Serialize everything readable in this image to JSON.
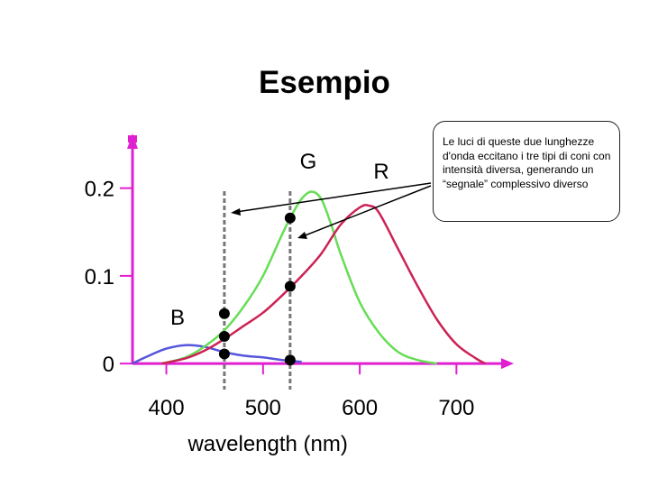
{
  "slide": {
    "title": "Esempio",
    "callout_text": "Le luci di queste due lunghezze d'onda eccitano i tre tipi di coni con intensità diversa, generando un “segnale” complessivo diverso"
  },
  "chart_data": {
    "type": "line",
    "xlabel": "wavelength (nm)",
    "ylabel": "",
    "x_ticks": [
      "400",
      "500",
      "600",
      "700"
    ],
    "y_ticks": [
      "0",
      "0.1",
      "0.2"
    ],
    "xlim": [
      365,
      750
    ],
    "ylim": [
      -0.005,
      0.25
    ],
    "grid": false,
    "series": [
      {
        "name": "B",
        "color": "#5555dd",
        "x": [
          365,
          380,
          400,
          420,
          440,
          460,
          480,
          500,
          520,
          540
        ],
        "y": [
          0.0,
          0.008,
          0.017,
          0.021,
          0.019,
          0.013,
          0.009,
          0.007,
          0.004,
          0.002
        ]
      },
      {
        "name": "G",
        "color": "#66dd55",
        "x": [
          395,
          420,
          440,
          460,
          480,
          500,
          520,
          530,
          540,
          550,
          560,
          570,
          580,
          600,
          620,
          640,
          660,
          680
        ],
        "y": [
          0.0,
          0.007,
          0.02,
          0.038,
          0.065,
          0.1,
          0.148,
          0.17,
          0.188,
          0.196,
          0.188,
          0.16,
          0.126,
          0.07,
          0.035,
          0.013,
          0.004,
          0.0
        ]
      },
      {
        "name": "R",
        "color": "#cc2255",
        "x": [
          395,
          420,
          440,
          460,
          480,
          500,
          520,
          540,
          560,
          580,
          600,
          610,
          620,
          640,
          660,
          680,
          700,
          720,
          730
        ],
        "y": [
          0.0,
          0.006,
          0.015,
          0.028,
          0.043,
          0.058,
          0.078,
          0.1,
          0.125,
          0.158,
          0.178,
          0.18,
          0.172,
          0.13,
          0.088,
          0.05,
          0.022,
          0.006,
          0.0
        ]
      }
    ],
    "reference_lines": [
      {
        "x": 460
      },
      {
        "x": 528
      }
    ],
    "markers": [
      {
        "x": 460,
        "y": 0.057
      },
      {
        "x": 460,
        "y": 0.031
      },
      {
        "x": 460,
        "y": 0.011
      },
      {
        "x": 528,
        "y": 0.166
      },
      {
        "x": 528,
        "y": 0.088
      },
      {
        "x": 528,
        "y": 0.004
      }
    ]
  },
  "colors": {
    "axis": "#e020d0",
    "reference_line": "#777777",
    "marker": "#000000"
  }
}
